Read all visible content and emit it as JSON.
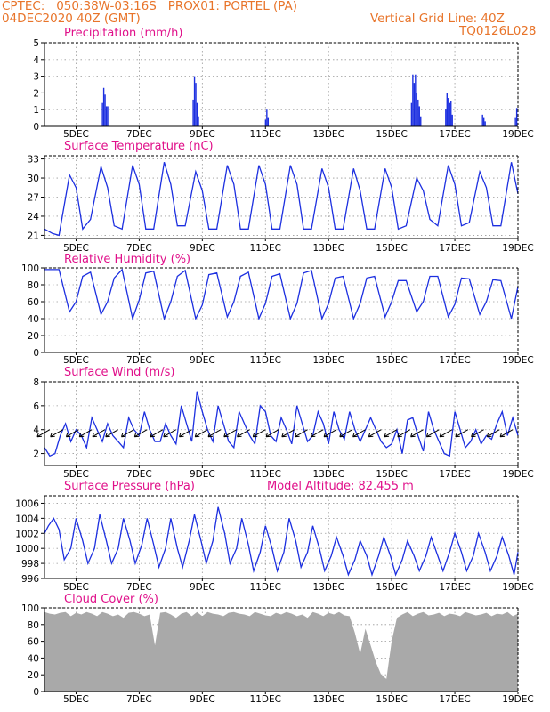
{
  "header": {
    "station": "CPTEC:   050:38W-03:16S   PROX01: PORTEL (PA)",
    "run": "04DEC2020 40Z (GMT)",
    "grid_note": "Vertical Grid Line: 40Z",
    "model": "TQ0126L028"
  },
  "colors": {
    "header": "#e8742a",
    "panel_title": "#e0108a",
    "series": "#1c2fe0",
    "cloud": "#a9a9a9"
  },
  "chart_data": [
    {
      "type": "bar",
      "title": "Precipitation (mm/h)",
      "x_tick_labels": [
        "5DEC",
        "7DEC",
        "9DEC",
        "11DEC",
        "13DEC",
        "15DEC",
        "17DEC",
        "19DEC"
      ],
      "x_tick_hours": [
        24,
        72,
        120,
        168,
        216,
        264,
        312,
        360
      ],
      "ylim": [
        0,
        5
      ],
      "yticks": [
        0,
        1,
        2,
        3,
        4,
        5
      ],
      "grid": true,
      "bars": [
        {
          "x": 44,
          "y": 1.4
        },
        {
          "x": 45,
          "y": 2.3
        },
        {
          "x": 46,
          "y": 1.9
        },
        {
          "x": 47,
          "y": 1.2
        },
        {
          "x": 48,
          "y": 1.2
        },
        {
          "x": 113,
          "y": 1.6
        },
        {
          "x": 114,
          "y": 3.0
        },
        {
          "x": 115,
          "y": 2.6
        },
        {
          "x": 116,
          "y": 1.4
        },
        {
          "x": 117,
          "y": 0.6
        },
        {
          "x": 168,
          "y": 0.4
        },
        {
          "x": 169,
          "y": 1.0
        },
        {
          "x": 170,
          "y": 0.5
        },
        {
          "x": 279,
          "y": 1.4
        },
        {
          "x": 280,
          "y": 3.1
        },
        {
          "x": 281,
          "y": 2.6
        },
        {
          "x": 282,
          "y": 3.1
        },
        {
          "x": 283,
          "y": 2.0
        },
        {
          "x": 284,
          "y": 1.6
        },
        {
          "x": 285,
          "y": 1.2
        },
        {
          "x": 286,
          "y": 0.6
        },
        {
          "x": 305,
          "y": 1.0
        },
        {
          "x": 306,
          "y": 2.0
        },
        {
          "x": 307,
          "y": 1.7
        },
        {
          "x": 308,
          "y": 1.4
        },
        {
          "x": 309,
          "y": 1.5
        },
        {
          "x": 310,
          "y": 0.7
        },
        {
          "x": 333,
          "y": 0.7
        },
        {
          "x": 334,
          "y": 0.5
        },
        {
          "x": 335,
          "y": 0.3
        },
        {
          "x": 358,
          "y": 0.5
        },
        {
          "x": 359,
          "y": 1.1
        }
      ]
    },
    {
      "type": "line",
      "title": "Surface Temperature (nC)",
      "x_tick_labels": [
        "5DEC",
        "7DEC",
        "9DEC",
        "11DEC",
        "13DEC",
        "15DEC",
        "17DEC",
        "19DEC"
      ],
      "ylim": [
        20.5,
        33.5
      ],
      "yticks": [
        21,
        24,
        27,
        30,
        33
      ],
      "grid": true,
      "x": [
        0,
        6,
        11,
        19,
        24,
        29,
        35,
        43,
        48,
        53,
        59,
        67,
        72,
        77,
        83,
        91,
        96,
        101,
        107,
        115,
        120,
        125,
        131,
        139,
        144,
        149,
        155,
        163,
        168,
        173,
        179,
        187,
        192,
        197,
        203,
        211,
        216,
        221,
        227,
        235,
        240,
        245,
        251,
        259,
        264,
        269,
        275,
        283,
        288,
        293,
        299,
        307,
        312,
        317,
        323,
        331,
        336,
        341,
        347,
        355,
        360
      ],
      "y": [
        22.0,
        21.3,
        21.0,
        30.5,
        28.5,
        22.0,
        23.5,
        31.8,
        28.5,
        22.5,
        22.0,
        32.0,
        29.0,
        22.0,
        22.0,
        32.5,
        29.0,
        22.5,
        22.5,
        31.0,
        28.0,
        22.0,
        22.0,
        32.0,
        29.0,
        22.0,
        22.0,
        32.0,
        29.0,
        22.0,
        22.0,
        32.0,
        29.0,
        22.0,
        22.0,
        31.5,
        28.5,
        22.0,
        22.0,
        31.5,
        28.0,
        22.0,
        22.0,
        31.5,
        28.5,
        22.0,
        22.5,
        30.0,
        28.0,
        23.5,
        22.5,
        32.0,
        29.0,
        22.5,
        23.0,
        31.0,
        28.5,
        22.5,
        22.5,
        32.5,
        27.5
      ]
    },
    {
      "type": "line",
      "title": "Relative Humidity (%)",
      "x_tick_labels": [
        "5DEC",
        "7DEC",
        "9DEC",
        "11DEC",
        "13DEC",
        "15DEC",
        "17DEC",
        "19DEC"
      ],
      "ylim": [
        0,
        100
      ],
      "yticks": [
        0,
        20,
        40,
        60,
        80,
        100
      ],
      "grid": true,
      "x": [
        0,
        11,
        19,
        24,
        29,
        35,
        43,
        48,
        53,
        59,
        67,
        72,
        77,
        83,
        91,
        96,
        101,
        107,
        115,
        120,
        125,
        131,
        139,
        144,
        149,
        155,
        163,
        168,
        173,
        179,
        187,
        192,
        197,
        203,
        211,
        216,
        221,
        227,
        235,
        240,
        245,
        251,
        259,
        264,
        269,
        275,
        283,
        288,
        293,
        299,
        307,
        312,
        317,
        323,
        331,
        336,
        341,
        347,
        355,
        360
      ],
      "y": [
        98,
        98,
        48,
        60,
        90,
        95,
        45,
        60,
        88,
        98,
        40,
        62,
        94,
        96,
        40,
        60,
        90,
        97,
        40,
        56,
        92,
        94,
        42,
        60,
        90,
        95,
        40,
        58,
        90,
        93,
        40,
        58,
        94,
        97,
        40,
        58,
        88,
        90,
        40,
        58,
        88,
        90,
        42,
        60,
        85,
        85,
        48,
        60,
        90,
        90,
        42,
        57,
        88,
        87,
        45,
        60,
        86,
        85,
        40,
        78
      ]
    },
    {
      "type": "line",
      "title": "Surface Wind (m/s)",
      "x_tick_labels": [
        "5DEC",
        "7DEC",
        "9DEC",
        "11DEC",
        "13DEC",
        "15DEC",
        "17DEC",
        "19DEC"
      ],
      "ylim": [
        1,
        8
      ],
      "yticks": [
        2,
        4,
        6,
        8
      ],
      "grid": true,
      "x": [
        0,
        4,
        8,
        12,
        16,
        20,
        24,
        28,
        32,
        36,
        40,
        44,
        48,
        52,
        56,
        60,
        64,
        68,
        72,
        76,
        80,
        84,
        88,
        92,
        96,
        100,
        104,
        108,
        112,
        116,
        120,
        124,
        128,
        132,
        136,
        140,
        144,
        148,
        152,
        156,
        160,
        164,
        168,
        172,
        176,
        180,
        184,
        188,
        192,
        196,
        200,
        204,
        208,
        212,
        216,
        220,
        224,
        228,
        232,
        236,
        240,
        244,
        248,
        252,
        256,
        260,
        264,
        268,
        272,
        276,
        280,
        284,
        288,
        292,
        296,
        300,
        304,
        308,
        312,
        316,
        320,
        324,
        328,
        332,
        336,
        340,
        344,
        348,
        352,
        356,
        360
      ],
      "y": [
        2.5,
        1.8,
        2.0,
        3.5,
        4.5,
        3.0,
        4.0,
        3.5,
        2.5,
        5.0,
        4.0,
        3.0,
        4.5,
        3.5,
        3.0,
        2.5,
        5.0,
        4.0,
        3.5,
        5.5,
        4.0,
        3.0,
        3.0,
        4.5,
        3.5,
        2.8,
        6.0,
        4.5,
        3.0,
        7.2,
        5.5,
        4.0,
        3.0,
        6.0,
        4.5,
        3.0,
        2.5,
        5.5,
        4.5,
        3.5,
        2.8,
        6.0,
        5.5,
        3.5,
        3.0,
        5.0,
        4.0,
        2.8,
        6.0,
        4.5,
        3.0,
        3.5,
        5.5,
        4.5,
        2.8,
        5.5,
        4.0,
        3.2,
        5.5,
        4.0,
        3.0,
        4.0,
        5.0,
        4.0,
        3.0,
        2.5,
        2.8,
        4.0,
        2.0,
        4.8,
        5.0,
        3.5,
        2.2,
        5.5,
        4.0,
        3.0,
        2.0,
        1.8,
        5.5,
        4.0,
        2.5,
        3.0,
        4.0,
        2.8,
        3.5,
        3.2,
        4.5,
        5.5,
        3.5,
        5.0,
        3.5
      ],
      "arrows_hours": [
        4,
        14,
        26,
        36,
        46,
        56,
        68,
        78,
        90,
        100,
        112,
        124,
        134,
        146,
        156,
        168,
        178,
        190,
        200,
        212,
        222,
        234,
        244,
        256,
        268,
        278,
        288,
        300,
        310,
        322,
        334,
        346,
        356
      ]
    },
    {
      "type": "line",
      "title": "Surface Pressure (hPa)",
      "subtitle": "Model Altitude: 82.455 m",
      "x_tick_labels": [
        "5DEC",
        "7DEC",
        "9DEC",
        "11DEC",
        "13DEC",
        "15DEC",
        "17DEC",
        "19DEC"
      ],
      "ylim": [
        996,
        1007
      ],
      "yticks": [
        996,
        998,
        1000,
        1002,
        1004,
        1006
      ],
      "grid": true,
      "x": [
        0,
        3,
        7,
        11,
        15,
        20,
        24,
        29,
        33,
        38,
        42,
        47,
        51,
        56,
        60,
        65,
        69,
        74,
        78,
        83,
        87,
        92,
        96,
        101,
        105,
        110,
        114,
        119,
        123,
        128,
        132,
        137,
        141,
        146,
        150,
        155,
        159,
        164,
        168,
        173,
        177,
        182,
        186,
        191,
        195,
        200,
        204,
        209,
        213,
        218,
        222,
        227,
        231,
        236,
        240,
        245,
        249,
        254,
        258,
        263,
        267,
        272,
        276,
        281,
        285,
        290,
        294,
        299,
        303,
        308,
        312,
        317,
        321,
        326,
        330,
        335,
        339,
        344,
        348,
        353,
        357,
        360
      ],
      "y": [
        1002.0,
        1003.0,
        1004.0,
        1002.5,
        998.5,
        1000.0,
        1004.0,
        1001.0,
        998.0,
        1000.0,
        1004.5,
        1001.0,
        998.0,
        1000.0,
        1004.0,
        1001.0,
        998.0,
        1000.5,
        1004.0,
        1000.5,
        997.5,
        1000.0,
        1004.0,
        1000.0,
        997.5,
        1001.0,
        1004.5,
        1001.0,
        998.0,
        1001.0,
        1005.5,
        1002.0,
        998.0,
        1000.0,
        1004.0,
        1000.5,
        997.0,
        999.5,
        1003.0,
        1000.0,
        997.0,
        999.5,
        1004.0,
        1001.0,
        997.5,
        999.5,
        1003.0,
        1000.0,
        997.0,
        999.0,
        1001.5,
        999.0,
        996.5,
        998.5,
        1001.0,
        999.0,
        996.5,
        999.0,
        1001.5,
        999.0,
        996.5,
        998.5,
        1001.0,
        999.0,
        997.0,
        999.0,
        1001.5,
        999.0,
        997.0,
        999.5,
        1002.0,
        999.5,
        997.0,
        999.0,
        1002.0,
        999.5,
        997.0,
        999.0,
        1001.5,
        999.0,
        996.5,
        999.5
      ]
    },
    {
      "type": "area",
      "title": "Cloud Cover (%)",
      "x_tick_labels": [
        "5DEC",
        "7DEC",
        "9DEC",
        "11DEC",
        "13DEC",
        "15DEC",
        "17DEC",
        "19DEC"
      ],
      "ylim": [
        0,
        100
      ],
      "yticks": [
        0,
        20,
        40,
        60,
        80,
        100
      ],
      "grid": true,
      "x": [
        0,
        4,
        8,
        12,
        16,
        20,
        24,
        28,
        32,
        36,
        40,
        44,
        48,
        52,
        56,
        60,
        64,
        68,
        72,
        76,
        80,
        84,
        88,
        92,
        96,
        100,
        104,
        108,
        112,
        116,
        120,
        124,
        128,
        132,
        136,
        140,
        144,
        148,
        152,
        156,
        160,
        164,
        168,
        172,
        176,
        180,
        184,
        188,
        192,
        196,
        200,
        204,
        208,
        212,
        216,
        220,
        224,
        228,
        232,
        236,
        240,
        244,
        248,
        252,
        256,
        260,
        264,
        268,
        272,
        276,
        280,
        284,
        288,
        292,
        296,
        300,
        304,
        308,
        312,
        316,
        320,
        324,
        328,
        332,
        336,
        340,
        344,
        348,
        352,
        356,
        360
      ],
      "y": [
        95,
        93,
        92,
        94,
        95,
        90,
        94,
        92,
        95,
        93,
        90,
        95,
        93,
        90,
        92,
        88,
        94,
        95,
        93,
        90,
        92,
        55,
        94,
        95,
        92,
        88,
        93,
        95,
        90,
        95,
        90,
        95,
        93,
        92,
        90,
        94,
        95,
        93,
        92,
        90,
        95,
        93,
        91,
        90,
        94,
        92,
        95,
        93,
        90,
        92,
        88,
        95,
        93,
        90,
        94,
        92,
        95,
        91,
        90,
        70,
        45,
        75,
        55,
        35,
        20,
        15,
        60,
        88,
        92,
        95,
        90,
        93,
        95,
        91,
        92,
        94,
        90,
        93,
        92,
        90,
        95,
        93,
        91,
        92,
        94,
        90,
        93,
        92,
        95,
        90,
        93
      ]
    }
  ]
}
